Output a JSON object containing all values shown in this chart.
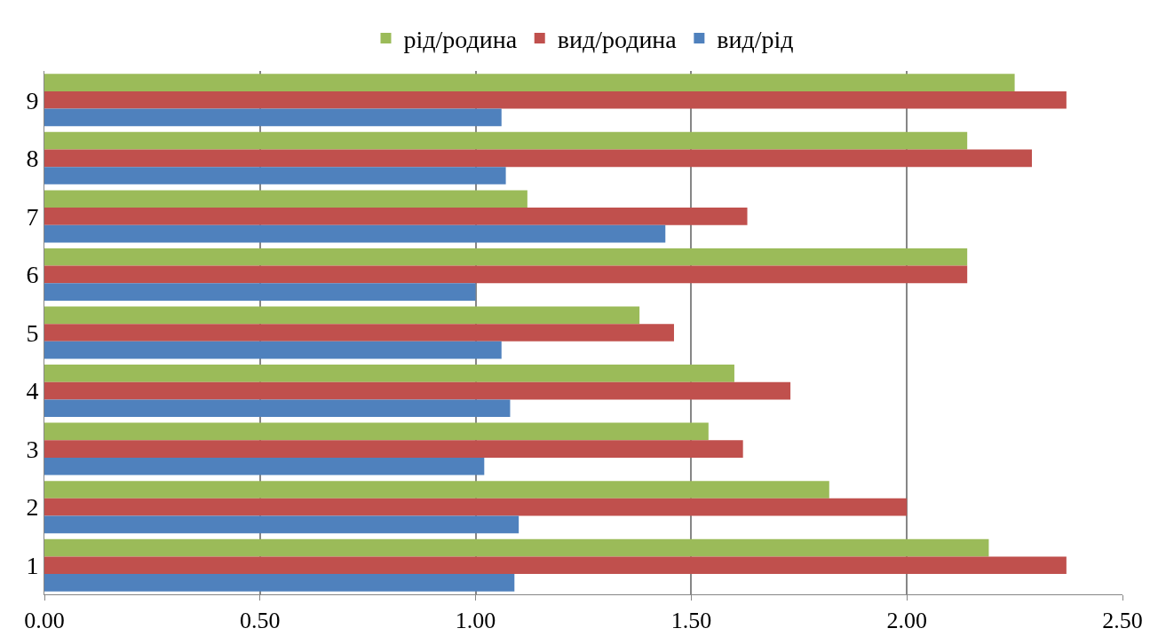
{
  "chart_data": {
    "type": "bar",
    "orientation": "horizontal",
    "categories": [
      "9",
      "8",
      "7",
      "6",
      "5",
      "4",
      "3",
      "2",
      "1"
    ],
    "series": [
      {
        "name": "рід/родина",
        "color": "#9bbb59",
        "values": [
          2.25,
          2.14,
          1.12,
          2.14,
          1.38,
          1.6,
          1.54,
          1.82,
          2.19
        ]
      },
      {
        "name": "вид/родина",
        "color": "#c0504d",
        "values": [
          2.37,
          2.29,
          1.63,
          2.14,
          1.46,
          1.73,
          1.62,
          2.0,
          2.37
        ]
      },
      {
        "name": "вид/рід",
        "color": "#4f81bd",
        "values": [
          1.06,
          1.07,
          1.44,
          1.0,
          1.06,
          1.08,
          1.02,
          1.1,
          1.09
        ]
      }
    ],
    "xlim": [
      0,
      2.5
    ],
    "xticks": [
      {
        "value": 0,
        "label": "0.00"
      },
      {
        "value": 0.5,
        "label": "0.50"
      },
      {
        "value": 1,
        "label": "1.00"
      },
      {
        "value": 1.5,
        "label": "1.50"
      },
      {
        "value": 2,
        "label": "2.00"
      },
      {
        "value": 2.5,
        "label": "2.50"
      }
    ],
    "grid": "x",
    "legend": "top"
  }
}
